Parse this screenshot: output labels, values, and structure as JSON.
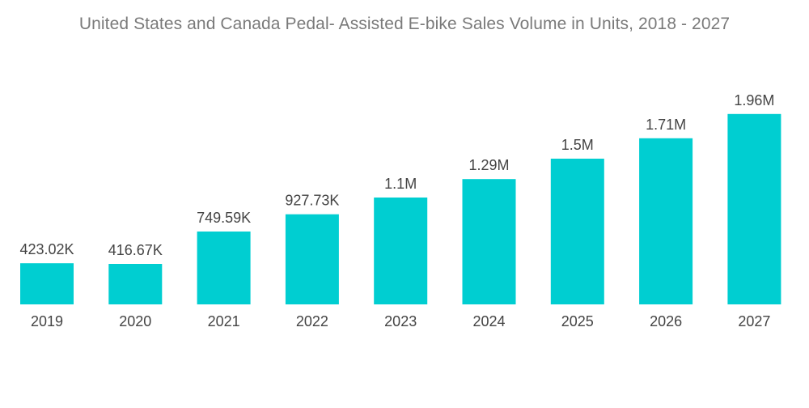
{
  "chart_data": {
    "type": "bar",
    "title": "United States and Canada Pedal- Assisted E-bike Sales Volume in Units, 2018 - 2027",
    "xlabel": "",
    "ylabel": "",
    "categories": [
      "2019",
      "2020",
      "2021",
      "2022",
      "2023",
      "2024",
      "2025",
      "2026",
      "2027"
    ],
    "values": [
      423020,
      416670,
      749590,
      927730,
      1100000,
      1290000,
      1500000,
      1710000,
      1960000
    ],
    "value_labels": [
      "423.02K",
      "416.67K",
      "749.59K",
      "927.73K",
      "1.1M",
      "1.29M",
      "1.5M",
      "1.71M",
      "1.96M"
    ],
    "ylim": [
      0,
      2000000
    ],
    "grid": false,
    "legend": "none",
    "colors": {
      "bar": "#00ced1",
      "title": "#7a7a7a",
      "label": "#444444"
    }
  }
}
